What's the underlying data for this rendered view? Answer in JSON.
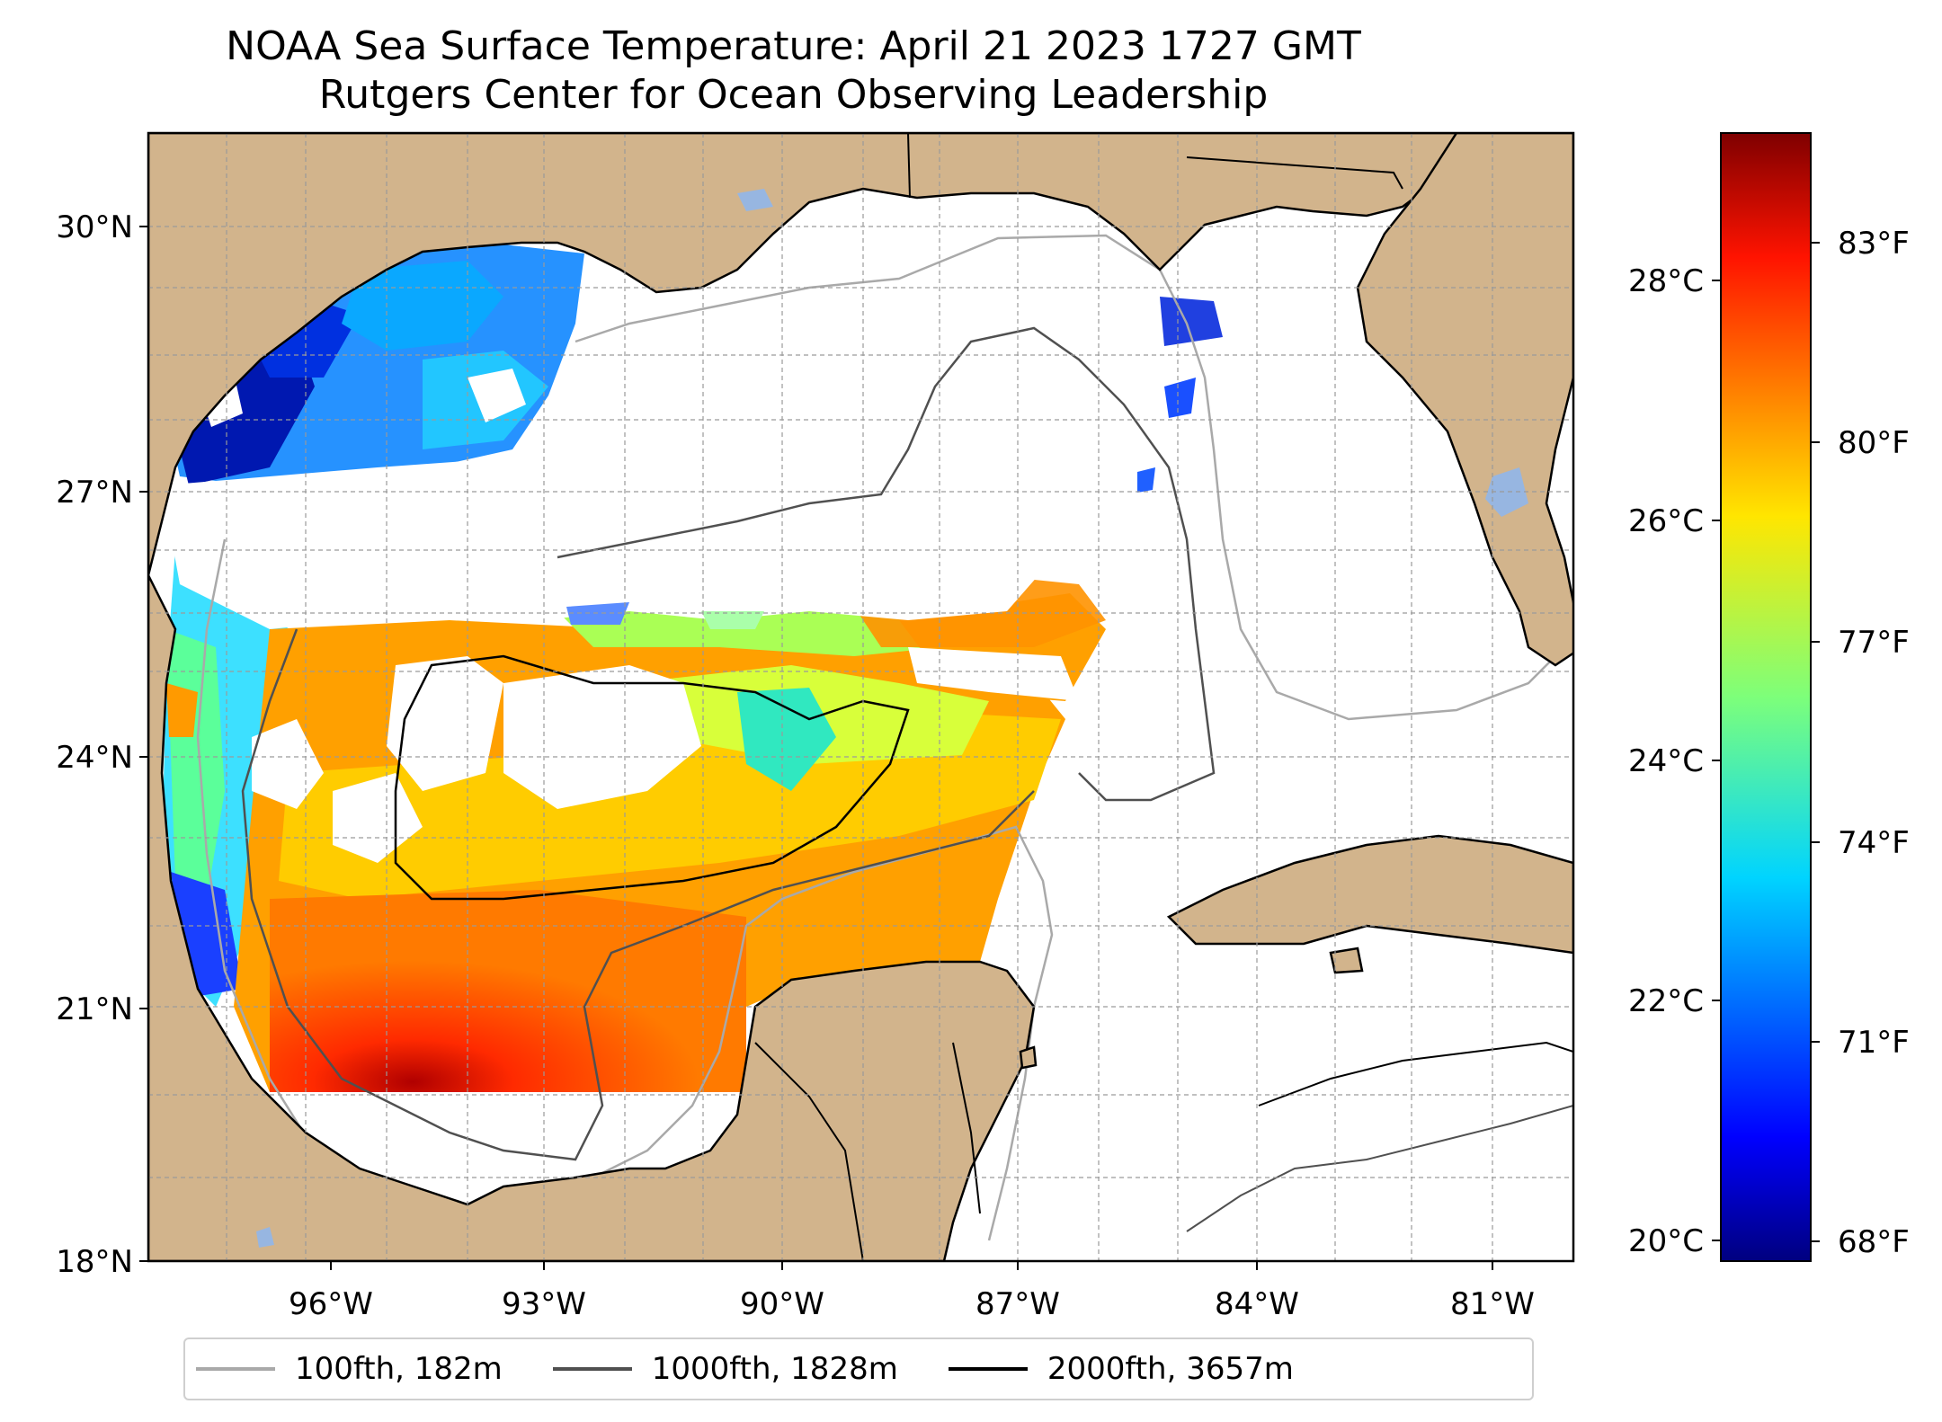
{
  "title": {
    "line1": "NOAA Sea Surface Temperature: April 21 2023 1727 GMT",
    "line2": "Rutgers Center for Ocean Observing Leadership"
  },
  "map": {
    "lat_ticks": [
      "30°N",
      "27°N",
      "24°N",
      "21°N",
      "18°N"
    ],
    "lon_ticks": [
      "96°W",
      "93°W",
      "90°W",
      "87°W",
      "84°W",
      "81°W"
    ],
    "colors": {
      "land": "#D2B48C",
      "lakes": "#97B6E1",
      "coast": "#000000",
      "grid": "#9a9a9a"
    }
  },
  "colorbar": {
    "celsius_ticks": [
      "28°C",
      "26°C",
      "24°C",
      "22°C",
      "20°C"
    ],
    "fahrenheit_ticks": [
      "83°F",
      "80°F",
      "77°F",
      "74°F",
      "71°F",
      "68°F"
    ],
    "colormap": "jet",
    "range_celsius": [
      19.8,
      29.2
    ]
  },
  "legend": {
    "items": [
      {
        "label": "100fth, 182m",
        "color": "#a9a9a9"
      },
      {
        "label": "1000fth, 1828m",
        "color": "#505050"
      },
      {
        "label": "2000fth, 3657m",
        "color": "#000000"
      }
    ]
  }
}
